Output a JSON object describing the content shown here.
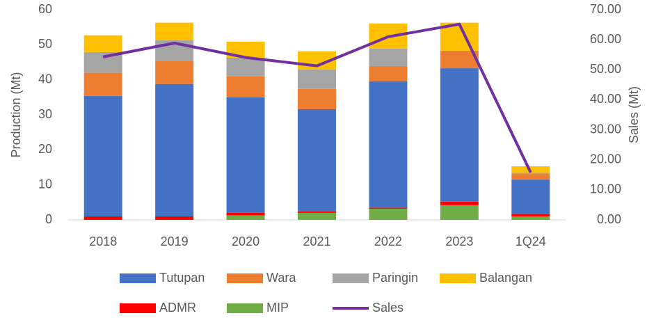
{
  "chart_data": {
    "type": "bar",
    "stacked": true,
    "y_label": "Production (Mt)",
    "y2_label": "Sales (Mt)",
    "categories": [
      "2018",
      "2019",
      "2020",
      "2021",
      "2022",
      "2023",
      "1Q24"
    ],
    "series": [
      {
        "name": "Tutupan",
        "color": "#4472c4",
        "values": [
          34.4,
          37.8,
          33.0,
          29.2,
          36.1,
          38.1,
          9.9
        ]
      },
      {
        "name": "Wara",
        "color": "#ed7d31",
        "values": [
          6.6,
          6.5,
          6.0,
          5.8,
          4.3,
          5.0,
          1.6
        ]
      },
      {
        "name": "Paringin",
        "color": "#a5a5a5",
        "values": [
          5.9,
          6.0,
          5.3,
          5.5,
          5.0,
          0,
          0.3
        ]
      },
      {
        "name": "Balangan",
        "color": "#ffc000",
        "values": [
          4.8,
          5.0,
          4.6,
          5.2,
          7.2,
          8.0,
          1.9
        ]
      },
      {
        "name": "ADMR",
        "color": "#ff0000",
        "values": [
          1.0,
          1.0,
          0.7,
          0.4,
          0.3,
          1.0,
          0.6
        ]
      },
      {
        "name": "MIP",
        "color": "#70ad47",
        "values": [
          0,
          0,
          1.3,
          2.0,
          3.2,
          4.2,
          1.0
        ]
      },
      {
        "name": "Sales",
        "type": "line",
        "axis": "y2",
        "color": "#7030a0",
        "values": [
          54.3,
          58.9,
          54.1,
          51.3,
          61.0,
          65.2,
          15.8
        ]
      }
    ],
    "ylim": [
      0,
      60
    ],
    "yticks": [
      0,
      10,
      20,
      30,
      40,
      50,
      60
    ],
    "y2lim": [
      0,
      70
    ],
    "y2ticks": [
      {
        "value": 0,
        "label": "0.00"
      },
      {
        "value": 10,
        "label": "10.00"
      },
      {
        "value": 20,
        "label": "20.00"
      },
      {
        "value": 30,
        "label": "30.00"
      },
      {
        "value": 40,
        "label": "40.00"
      },
      {
        "value": 50,
        "label": "50.00"
      },
      {
        "value": 60,
        "label": "60.00"
      },
      {
        "value": 70,
        "label": "70.00"
      }
    ],
    "legend": "bottom"
  }
}
